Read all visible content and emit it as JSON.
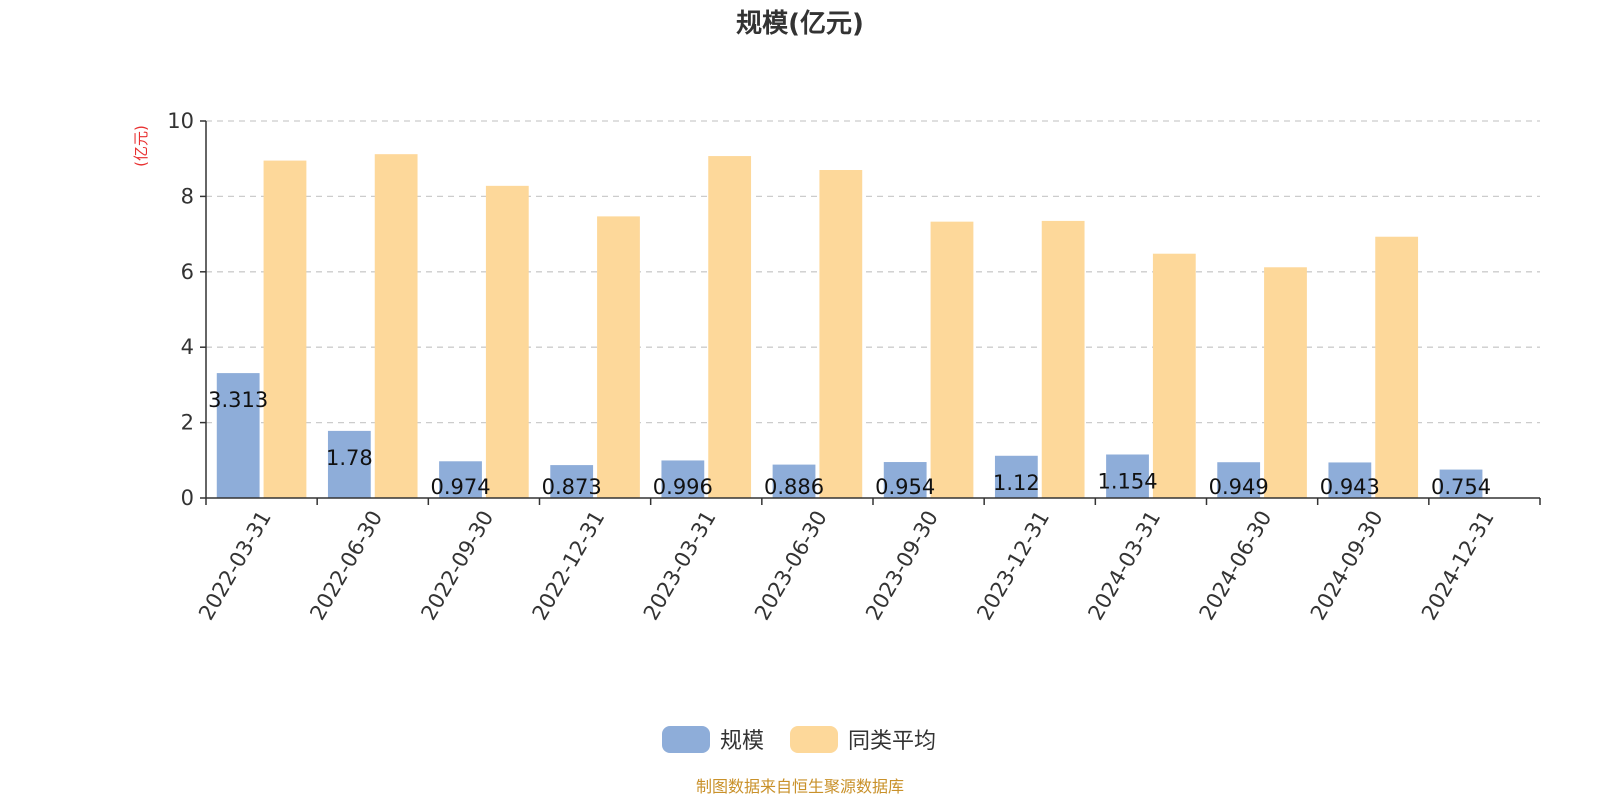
{
  "chart_data": {
    "type": "bar",
    "title": "规模(亿元)",
    "ylabel": "(亿元)",
    "ylim": [
      0,
      10
    ],
    "yticks": [
      0,
      2,
      4,
      6,
      8,
      10
    ],
    "grid": true,
    "legend_position": "bottom",
    "categories": [
      "2022-03-31",
      "2022-06-30",
      "2022-09-30",
      "2022-12-31",
      "2023-03-31",
      "2023-06-30",
      "2023-09-30",
      "2023-12-31",
      "2024-03-31",
      "2024-06-30",
      "2024-09-30",
      "2024-12-31"
    ],
    "series": [
      {
        "name": "规模",
        "color": "#8eadd9",
        "values": [
          3.313,
          1.78,
          0.974,
          0.873,
          0.996,
          0.886,
          0.954,
          1.12,
          1.154,
          0.949,
          0.943,
          0.754
        ],
        "labels": [
          "3.313",
          "1.78",
          "0.974",
          "0.873",
          "0.996",
          "0.886",
          "0.954",
          "1.12",
          "1.154",
          "0.949",
          "0.943",
          "0.754"
        ]
      },
      {
        "name": "同类平均",
        "color": "#fdd89a",
        "values": [
          8.95,
          9.12,
          8.28,
          7.47,
          9.07,
          8.7,
          7.33,
          7.35,
          6.48,
          6.12,
          6.93,
          null
        ]
      }
    ]
  },
  "colors": {
    "unit_label": "#e83030",
    "source": "#c9912a",
    "axis": "#333333",
    "grid": "#cccccc"
  },
  "source_text": "制图数据来自恒生聚源数据库"
}
